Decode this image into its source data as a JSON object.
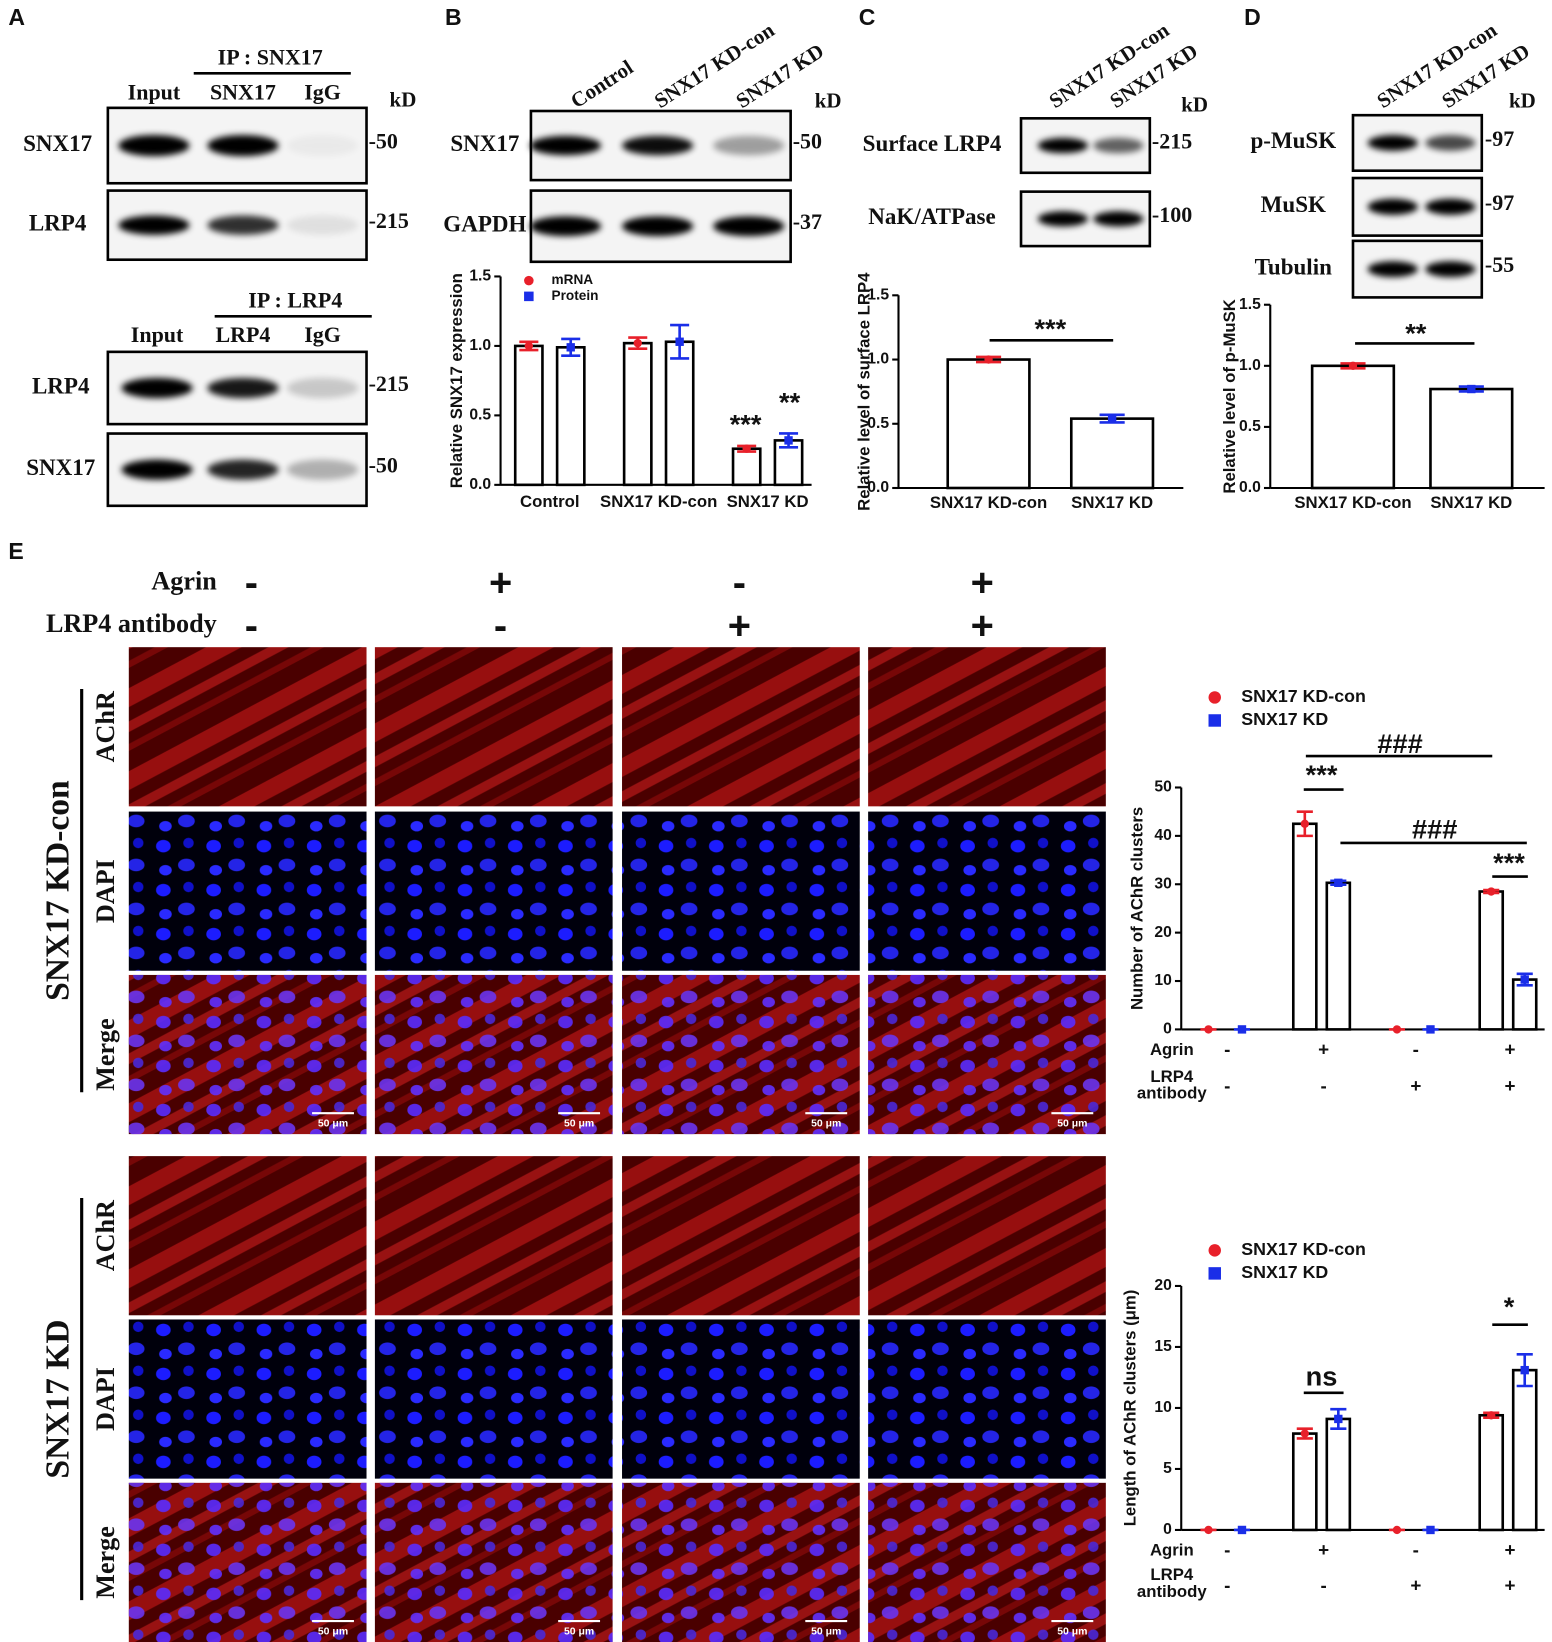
{
  "panel_labels": [
    "A",
    "B",
    "C",
    "D",
    "E"
  ],
  "blots": [
    {
      "header": "IP : SNX17",
      "lanes": [
        "Input",
        "SNX17",
        "IgG"
      ],
      "unit": "kD",
      "rows": [
        {
          "label": "SNX17",
          "size": "-50"
        },
        {
          "label": "LRP4",
          "size": "-215"
        }
      ]
    },
    {
      "header": "IP : LRP4",
      "lanes": [
        "Input",
        "LRP4",
        "IgG"
      ],
      "rows": [
        {
          "label": "LRP4",
          "size": "-215"
        },
        {
          "label": "SNX17",
          "size": "-50"
        }
      ]
    },
    {
      "lanes": [
        "Control",
        "SNX17 KD-con",
        "SNX17 KD"
      ],
      "unit": "kD",
      "rows": [
        {
          "label": "SNX17",
          "size": "-50"
        },
        {
          "label": "GAPDH",
          "size": "-37"
        }
      ]
    },
    {
      "lanes": [
        "SNX17 KD-con",
        "SNX17 KD"
      ],
      "unit": "kD",
      "rows": [
        {
          "label": "Surface LRP4",
          "size": "-215"
        },
        {
          "label": "NaK/ATPase",
          "size": "-100"
        }
      ]
    },
    {
      "lanes": [
        "SNX17 KD-con",
        "SNX17 KD"
      ],
      "unit": "kD",
      "rows": [
        {
          "label": "p-MuSK",
          "size": "-97"
        },
        {
          "label": "MuSK",
          "size": "-97"
        },
        {
          "label": "Tubulin",
          "size": "-55"
        }
      ]
    }
  ],
  "treatments": [
    {
      "label": "Agrin",
      "signs": [
        "-",
        "+",
        "-",
        "+"
      ]
    },
    {
      "label": "LRP4 antibody",
      "signs": [
        "-",
        "-",
        "+",
        "+"
      ]
    }
  ],
  "microscopy": {
    "groups": [
      "SNX17 KD-con",
      "SNX17 KD"
    ],
    "channels": [
      "AChR",
      "DAPI",
      "Merge"
    ],
    "scale_bar": "50 μm"
  },
  "chart_data": [
    {
      "type": "bar",
      "y_label": "Relative SNX17 expression",
      "categories": [
        "Control",
        "SNX17 KD-con",
        "SNX17 KD"
      ],
      "series": [
        {
          "name": "mRNA",
          "color": "#e8202a",
          "values": [
            1.0,
            1.02,
            0.26
          ],
          "errors": [
            0.03,
            0.04,
            0.02
          ]
        },
        {
          "name": "Protein",
          "color": "#1a2ee8",
          "values": [
            0.99,
            1.03,
            0.32
          ],
          "errors": [
            0.06,
            0.12,
            0.05
          ]
        }
      ],
      "ylim": [
        0,
        1.5
      ],
      "yticks": [
        {
          "value": 0,
          "label": "0.0"
        },
        0.5,
        {
          "value": 1,
          "label": "1.0"
        },
        1.5
      ],
      "legend": "upper left",
      "annotations": [
        "***",
        "**"
      ]
    },
    {
      "type": "bar",
      "y_label": "Relative level of surface LRP4",
      "categories": [
        "SNX17 KD-con",
        "SNX17 KD"
      ],
      "values": [
        1.0,
        0.54
      ],
      "errors": [
        0.02,
        0.03
      ],
      "colors": [
        "#e8202a",
        "#1a2ee8"
      ],
      "ylim": [
        0,
        1.5
      ],
      "yticks": [
        {
          "value": 0,
          "label": "0.0"
        },
        0.5,
        {
          "value": 1,
          "label": "1.0"
        },
        1.5
      ],
      "annotations": [
        "***"
      ]
    },
    {
      "type": "bar",
      "y_label": "Relative level of p-MuSK",
      "categories": [
        "SNX17 KD-con",
        "SNX17 KD"
      ],
      "values": [
        1.0,
        0.81
      ],
      "errors": [
        0.02,
        0.02
      ],
      "colors": [
        "#e8202a",
        "#1a2ee8"
      ],
      "ylim": [
        0,
        1.5
      ],
      "yticks": [
        {
          "value": 0,
          "label": "0.0"
        },
        0.5,
        {
          "value": 1,
          "label": "1.0"
        },
        1.5
      ],
      "annotations": [
        "**"
      ]
    },
    {
      "type": "bar",
      "y_label": "Number of AChR clusters",
      "categories": [
        null,
        null,
        null,
        null
      ],
      "x_rows": [
        {
          "label": "Agrin",
          "values": [
            "-",
            "+",
            "-",
            "+"
          ]
        },
        {
          "label": "LRP4 antibody",
          "values": [
            "-",
            "-",
            "+",
            "+"
          ]
        }
      ],
      "series": [
        {
          "name": "SNX17 KD-con",
          "color": "#e8202a",
          "values": [
            0,
            42.5,
            0,
            28.5
          ],
          "errors": [
            0,
            2.5,
            0,
            0.3
          ]
        },
        {
          "name": "SNX17 KD",
          "color": "#1a2ee8",
          "values": [
            0,
            30.3,
            0,
            10.3
          ],
          "errors": [
            0,
            0.4,
            0,
            1.2
          ]
        }
      ],
      "ylim": [
        0,
        50
      ],
      "yticks": [
        0,
        10,
        20,
        30,
        40,
        50
      ],
      "legend": "upper left",
      "annotations": [
        "***",
        "###",
        "###",
        "***"
      ]
    },
    {
      "type": "bar",
      "y_label": "Length of AChR clusters (μm)",
      "categories": [
        null,
        null,
        null,
        null
      ],
      "x_rows": [
        {
          "label": "Agrin",
          "values": [
            "-",
            "+",
            "-",
            "+"
          ]
        },
        {
          "label": "LRP4 antibody",
          "values": [
            "-",
            "-",
            "+",
            "+"
          ]
        }
      ],
      "series": [
        {
          "name": "SNX17 KD-con",
          "color": "#e8202a",
          "values": [
            0,
            7.9,
            0,
            9.4
          ],
          "errors": [
            0,
            0.4,
            0,
            0.2
          ]
        },
        {
          "name": "SNX17 KD",
          "color": "#1a2ee8",
          "values": [
            0,
            9.1,
            0,
            13.1
          ],
          "errors": [
            0,
            0.8,
            0,
            1.3
          ]
        }
      ],
      "ylim": [
        0,
        20
      ],
      "yticks": [
        0,
        5,
        10,
        15,
        20
      ],
      "legend": "upper left",
      "annotations": [
        "ns",
        "*"
      ]
    }
  ]
}
